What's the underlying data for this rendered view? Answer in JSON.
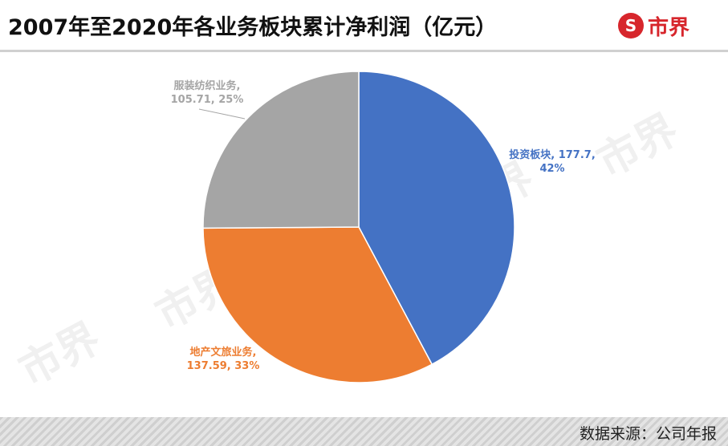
{
  "title": "2007年至2020年各业务板块累计净利润（亿元）",
  "logo": {
    "badge_text": "S",
    "brand_text": "市界"
  },
  "watermark_text": "市界",
  "source_text": "数据来源：公司年报",
  "chart_data": {
    "type": "pie",
    "start_angle_deg": 0,
    "direction": "clockwise",
    "slices": [
      {
        "name": "投资板块",
        "value": 177.7,
        "percent": 42,
        "color": "#4472c4",
        "label_lines": [
          "投资板块, 177.7,",
          "42%"
        ]
      },
      {
        "name": "地产文旅业务",
        "value": 137.59,
        "percent": 33,
        "color": "#ed7d31",
        "label_lines": [
          "地产文旅业务,",
          "137.59, 33%"
        ]
      },
      {
        "name": "服装纺织业务",
        "value": 105.71,
        "percent": 25,
        "color": "#a5a5a5",
        "label_lines": [
          "服装纺织业务,",
          "105.71, 25%"
        ]
      }
    ]
  }
}
